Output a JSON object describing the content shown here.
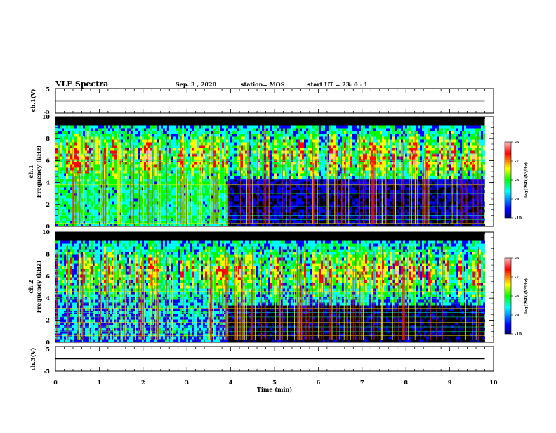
{
  "header": {
    "title": "VLF Spectra",
    "date": "Sep. 3 , 2020",
    "station": "station= MOS",
    "start": "start  UT =  23: 0  : 1"
  },
  "chart_data": [
    {
      "type": "line",
      "name": "ch1-waveform",
      "ylabel": "ch.1(V)",
      "ylim": [
        -5,
        5
      ],
      "yticks": [
        "5",
        "-5"
      ],
      "xlim": [
        0,
        10
      ],
      "x": [
        0,
        9.8
      ],
      "y": [
        0,
        0
      ]
    },
    {
      "type": "heatmap",
      "name": "ch1-spectrogram",
      "ylabel": "ch.1\nFrequency  (kHz)",
      "ylabel_lines": [
        "ch.1",
        "Frequency  (kHz)"
      ],
      "ylim": [
        0,
        10
      ],
      "yticks": [
        "0",
        "2",
        "4",
        "6",
        "8",
        "10"
      ],
      "xlim": [
        0,
        10
      ],
      "x_extent_min": 9.8,
      "colorbar": {
        "label": "log(PSD)(V²/Hz)",
        "min": -10,
        "max": -6,
        "ticks": [
          "-6",
          "-7",
          "-8",
          "-9",
          "-10"
        ]
      }
    },
    {
      "type": "heatmap",
      "name": "ch2-spectrogram",
      "ylabel": "ch.2\nFrequency  (kHz)",
      "ylabel_lines": [
        "ch.2",
        "Frequency  (kHz)"
      ],
      "ylim": [
        0,
        10
      ],
      "yticks": [
        "0",
        "2",
        "4",
        "6",
        "8",
        "10"
      ],
      "xlim": [
        0,
        10
      ],
      "x_extent_min": 9.8,
      "colorbar": {
        "label": "log(PSD)(V²/Hz)",
        "min": -10,
        "max": -6,
        "ticks": [
          "-6",
          "-7",
          "-8",
          "-9",
          "-10"
        ]
      }
    },
    {
      "type": "line",
      "name": "ch3-waveform",
      "ylabel": "ch.3(V)",
      "ylim": [
        -5,
        5
      ],
      "yticks": [
        "5",
        "-5"
      ],
      "xlim": [
        0,
        10
      ],
      "x": [
        0,
        9.8
      ],
      "y": [
        0,
        0
      ]
    }
  ],
  "xaxis": {
    "label": "Time  (min)",
    "ticks": [
      "0",
      "1",
      "2",
      "3",
      "4",
      "5",
      "6",
      "7",
      "8",
      "9",
      "10"
    ]
  },
  "colors": {
    "colormap": [
      "#000080",
      "#0000ff",
      "#00ffff",
      "#00ff00",
      "#ffff00",
      "#ff0000",
      "#ffc0c0"
    ],
    "background": "#000000",
    "waveform": "#000000"
  }
}
